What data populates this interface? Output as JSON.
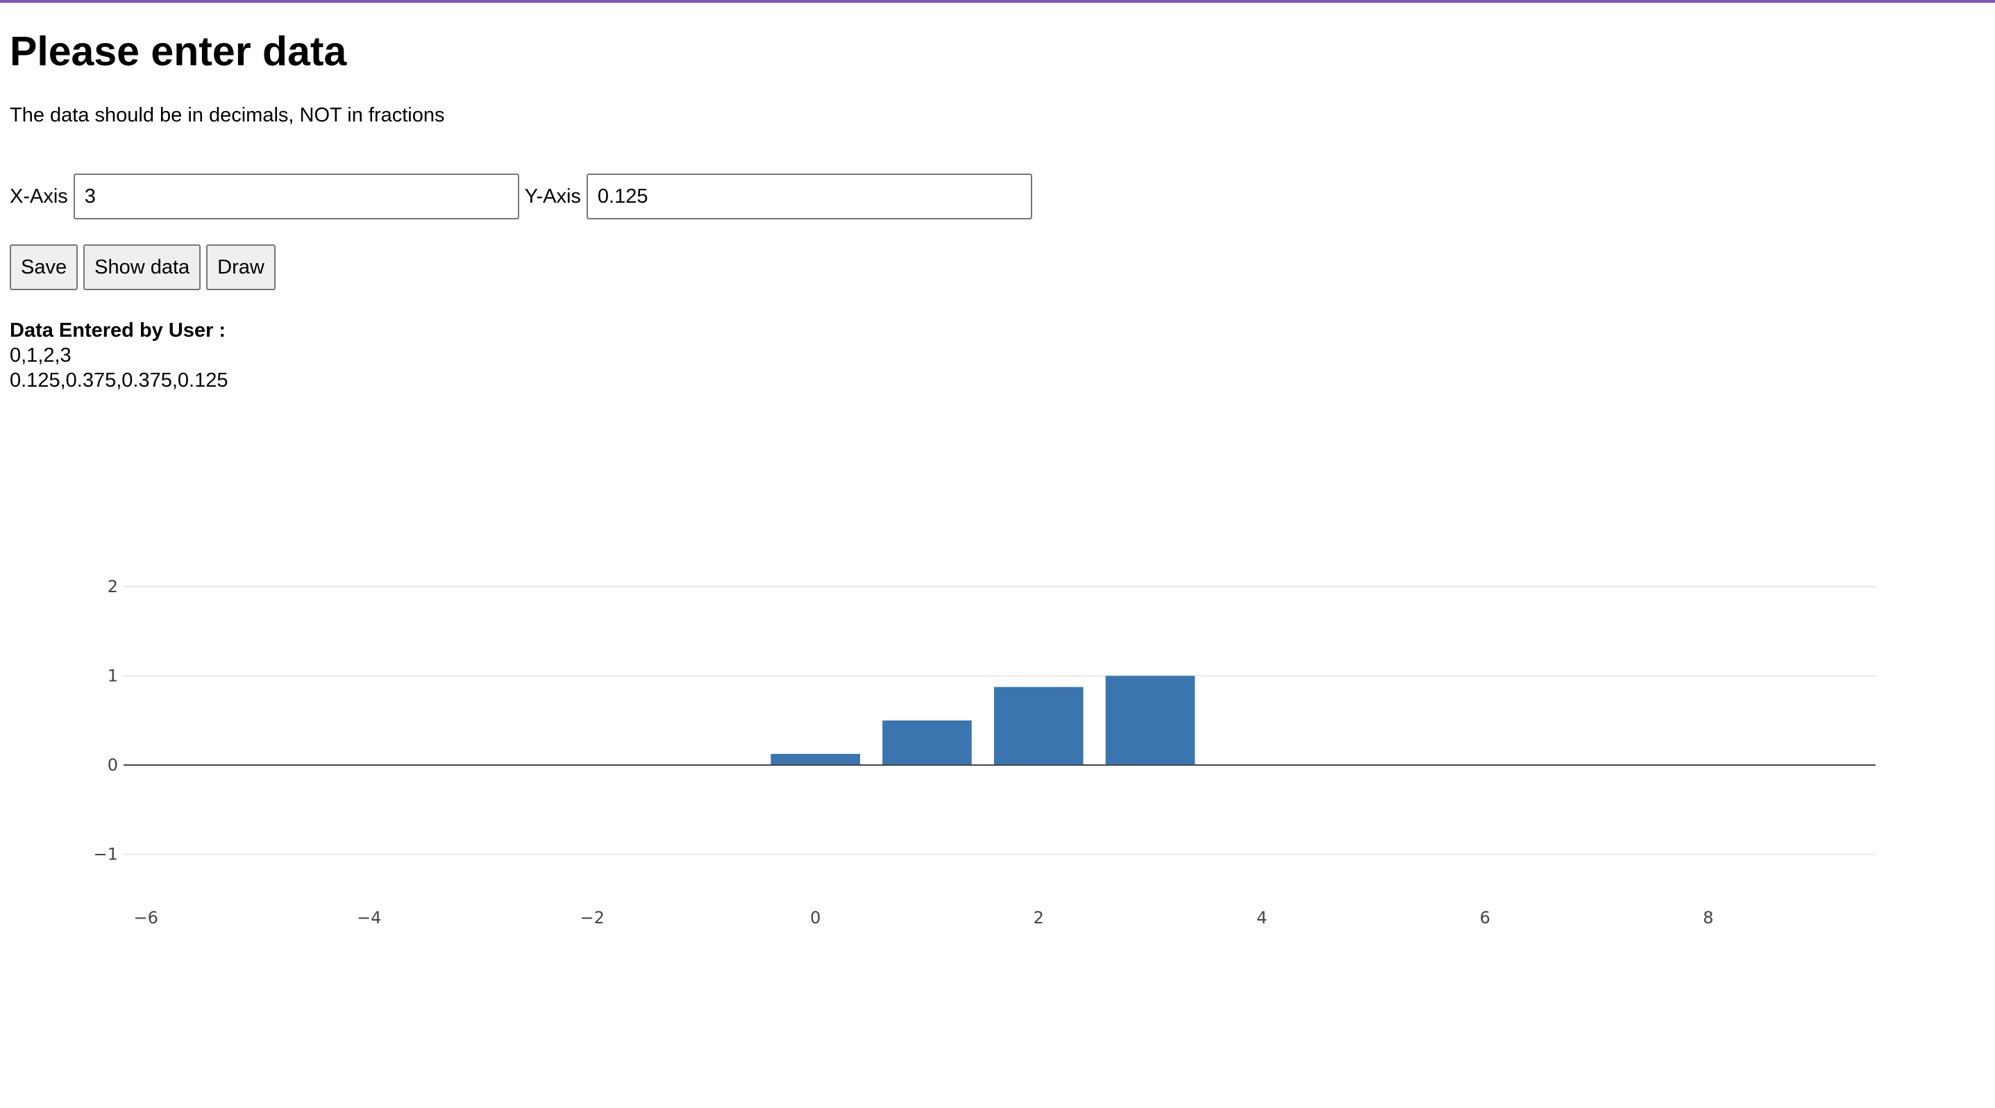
{
  "page": {
    "title": "Please enter data",
    "instructions": "The data should be in decimals, NOT in fractions"
  },
  "inputs": {
    "x_label": "X-Axis",
    "x_value": "3",
    "y_label": "Y-Axis",
    "y_value": "0.125"
  },
  "buttons": {
    "save": "Save",
    "show_data": "Show data",
    "draw": "Draw"
  },
  "data_display": {
    "heading": "Data Entered by User :",
    "x_line": "0,1,2,3",
    "y_line": "0.125,0.375,0.375,0.125"
  },
  "colors": {
    "accent_bar": "#7e57c2",
    "bar_fill": "#3a75b0"
  },
  "chart_data": {
    "type": "bar",
    "x": [
      0,
      1,
      2,
      3
    ],
    "values": [
      0.125,
      0.5,
      0.875,
      1
    ],
    "xlim": [
      -6.2,
      9.5
    ],
    "ylim": [
      -1.4,
      2.2
    ],
    "x_ticks": [
      -6,
      -4,
      -2,
      0,
      2,
      4,
      6,
      8
    ],
    "y_ticks": [
      -1,
      0,
      1,
      2
    ],
    "grid": true,
    "legend": false
  }
}
